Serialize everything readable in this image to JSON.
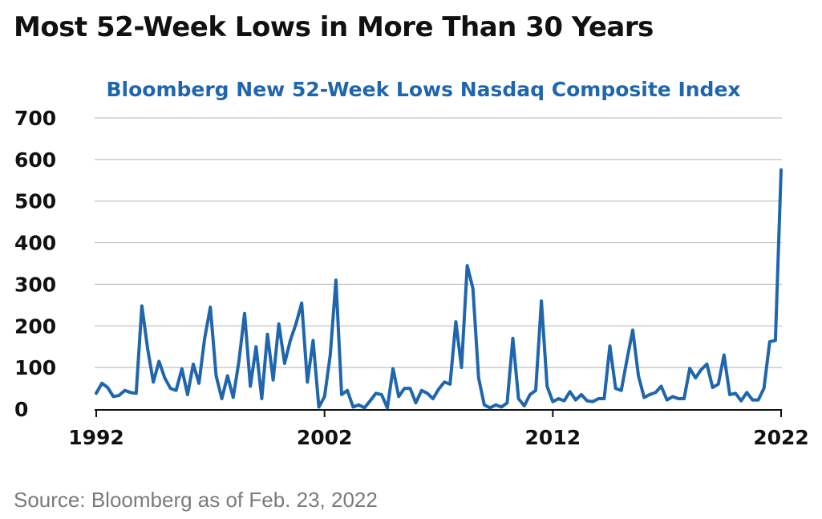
{
  "page": {
    "title": "Most 52-Week Lows in More Than 30 Years",
    "source": "Source: Bloomberg as of Feb. 23, 2022"
  },
  "colors": {
    "line": "#1f66ad",
    "grid": "#b5b5b5",
    "title": "#111111",
    "subtitle": "#1f66ad",
    "source": "#7a7a7a"
  },
  "chart_data": {
    "type": "line",
    "title": "Bloomberg New 52-Week Lows Nasdaq Composite Index",
    "xlabel": "",
    "ylabel": "",
    "xlim": [
      1992,
      2022
    ],
    "ylim": [
      0,
      700
    ],
    "yticks": [
      0,
      100,
      200,
      300,
      400,
      500,
      600,
      700
    ],
    "xticks": [
      1992,
      2002,
      2012,
      2022
    ],
    "grid": true,
    "legend": "none",
    "series": [
      {
        "points": [
          [
            1992.0,
            38
          ],
          [
            1992.25,
            62
          ],
          [
            1992.5,
            52
          ],
          [
            1992.75,
            30
          ],
          [
            1993.0,
            33
          ],
          [
            1993.25,
            45
          ],
          [
            1993.5,
            40
          ],
          [
            1993.75,
            38
          ],
          [
            1994.0,
            248
          ],
          [
            1994.25,
            145
          ],
          [
            1994.5,
            65
          ],
          [
            1994.75,
            115
          ],
          [
            1995.0,
            75
          ],
          [
            1995.25,
            50
          ],
          [
            1995.5,
            45
          ],
          [
            1995.75,
            97
          ],
          [
            1996.0,
            35
          ],
          [
            1996.25,
            108
          ],
          [
            1996.5,
            62
          ],
          [
            1996.75,
            170
          ],
          [
            1997.0,
            245
          ],
          [
            1997.25,
            80
          ],
          [
            1997.5,
            25
          ],
          [
            1997.75,
            80
          ],
          [
            1998.0,
            28
          ],
          [
            1998.25,
            115
          ],
          [
            1998.5,
            230
          ],
          [
            1998.75,
            55
          ],
          [
            1999.0,
            150
          ],
          [
            1999.25,
            25
          ],
          [
            1999.5,
            180
          ],
          [
            1999.75,
            70
          ],
          [
            2000.0,
            205
          ],
          [
            2000.25,
            110
          ],
          [
            2000.5,
            165
          ],
          [
            2000.75,
            205
          ],
          [
            2001.0,
            255
          ],
          [
            2001.25,
            65
          ],
          [
            2001.5,
            165
          ],
          [
            2001.75,
            5
          ],
          [
            2002.0,
            30
          ],
          [
            2002.25,
            130
          ],
          [
            2002.5,
            310
          ],
          [
            2002.75,
            35
          ],
          [
            2003.0,
            45
          ],
          [
            2003.25,
            5
          ],
          [
            2003.5,
            10
          ],
          [
            2003.75,
            3
          ],
          [
            2004.0,
            20
          ],
          [
            2004.25,
            38
          ],
          [
            2004.5,
            35
          ],
          [
            2004.75,
            3
          ],
          [
            2005.0,
            97
          ],
          [
            2005.25,
            30
          ],
          [
            2005.5,
            50
          ],
          [
            2005.75,
            50
          ],
          [
            2006.0,
            15
          ],
          [
            2006.25,
            45
          ],
          [
            2006.5,
            38
          ],
          [
            2006.75,
            25
          ],
          [
            2007.0,
            48
          ],
          [
            2007.25,
            65
          ],
          [
            2007.5,
            60
          ],
          [
            2007.75,
            210
          ],
          [
            2008.0,
            100
          ],
          [
            2008.25,
            345
          ],
          [
            2008.5,
            290
          ],
          [
            2008.75,
            75
          ],
          [
            2009.0,
            10
          ],
          [
            2009.25,
            3
          ],
          [
            2009.5,
            10
          ],
          [
            2009.75,
            5
          ],
          [
            2010.0,
            15
          ],
          [
            2010.25,
            170
          ],
          [
            2010.5,
            25
          ],
          [
            2010.75,
            8
          ],
          [
            2011.0,
            35
          ],
          [
            2011.25,
            45
          ],
          [
            2011.5,
            260
          ],
          [
            2011.75,
            55
          ],
          [
            2012.0,
            18
          ],
          [
            2012.25,
            25
          ],
          [
            2012.5,
            20
          ],
          [
            2012.75,
            42
          ],
          [
            2013.0,
            22
          ],
          [
            2013.25,
            35
          ],
          [
            2013.5,
            20
          ],
          [
            2013.75,
            18
          ],
          [
            2014.0,
            25
          ],
          [
            2014.25,
            25
          ],
          [
            2014.5,
            152
          ],
          [
            2014.75,
            50
          ],
          [
            2015.0,
            45
          ],
          [
            2015.25,
            120
          ],
          [
            2015.5,
            190
          ],
          [
            2015.75,
            80
          ],
          [
            2016.0,
            28
          ],
          [
            2016.25,
            35
          ],
          [
            2016.5,
            40
          ],
          [
            2016.75,
            55
          ],
          [
            2017.0,
            22
          ],
          [
            2017.25,
            30
          ],
          [
            2017.5,
            25
          ],
          [
            2017.75,
            25
          ],
          [
            2018.0,
            98
          ],
          [
            2018.25,
            75
          ],
          [
            2018.5,
            95
          ],
          [
            2018.75,
            108
          ],
          [
            2019.0,
            52
          ],
          [
            2019.25,
            60
          ],
          [
            2019.5,
            130
          ],
          [
            2019.75,
            35
          ],
          [
            2020.0,
            38
          ],
          [
            2020.25,
            20
          ],
          [
            2020.5,
            40
          ],
          [
            2020.75,
            22
          ],
          [
            2021.0,
            22
          ],
          [
            2021.25,
            50
          ],
          [
            2021.5,
            162
          ],
          [
            2021.75,
            165
          ],
          [
            2022.0,
            575
          ]
        ]
      }
    ]
  }
}
